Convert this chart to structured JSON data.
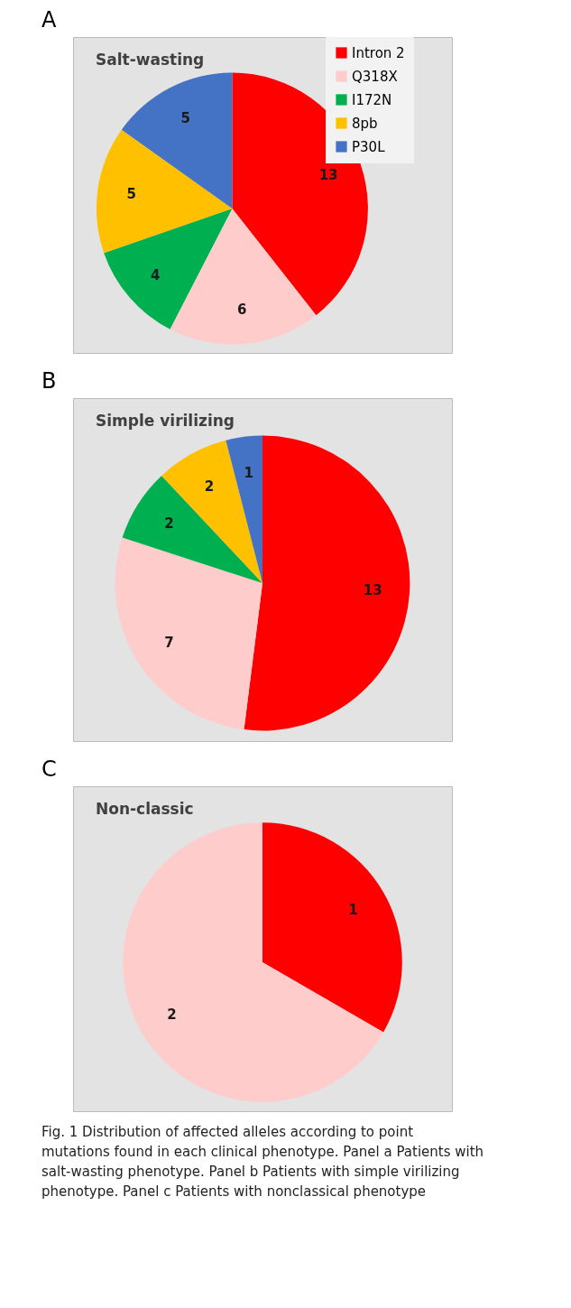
{
  "chart_data": [
    {
      "type": "pie",
      "title": "Salt-wasting",
      "annotations": [
        "A"
      ],
      "categories": [
        "Intron 2",
        "Q318X",
        "I172N",
        "8pb",
        "P30L"
      ],
      "values": [
        13,
        6,
        4,
        5,
        5
      ],
      "colors": [
        "#ff0000",
        "#ffcccc",
        "#00b050",
        "#ffc000",
        "#4472c4"
      ],
      "data_labels": true,
      "legend": "right"
    },
    {
      "type": "pie",
      "title": "Simple virilizing",
      "annotations": [
        "B"
      ],
      "categories": [
        null,
        null,
        null,
        null,
        null
      ],
      "values": [
        13,
        7,
        2,
        2,
        1
      ],
      "colors": [
        "#ff0000",
        "#ffcccc",
        "#00b050",
        "#ffc000",
        "#4472c4"
      ],
      "data_labels": true
    },
    {
      "type": "pie",
      "title": "Non-classic",
      "annotations": [
        "C",
        "Fig. 1 Distribution of affected alleles according to point mutations found in each clinical phenotype. Panel a Patients with salt-wasting phenotype. Panel b Patients with simple virilizing phenotype. Panel c Patients with nonclassical phenotype"
      ],
      "categories": [
        null,
        null
      ],
      "values": [
        1,
        2
      ],
      "colors": [
        "#ff0000",
        "#ffcccc"
      ],
      "data_labels": true
    }
  ]
}
